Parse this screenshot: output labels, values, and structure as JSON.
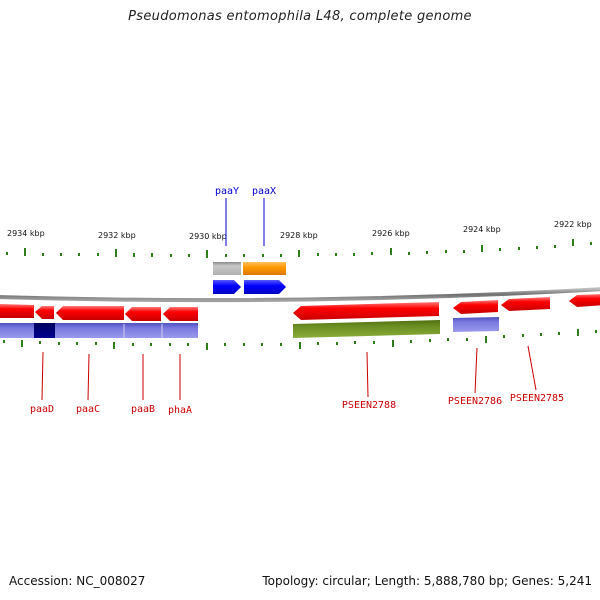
{
  "title": "Pseudomonas entomophila L48, complete genome",
  "footer": {
    "accession": "Accession: NC_008027",
    "summary": "Topology: circular; Length: 5,888,780 bp; Genes: 5,241"
  },
  "colors": {
    "forward_label": "#0000cc",
    "reverse_label": "#cc0000",
    "tick": "#2e7d1a",
    "backbone": "#8a8a8a"
  },
  "scale_labels": [
    "2934 kbp",
    "2932 kbp",
    "2930 kbp",
    "2928 kbp",
    "2926 kbp",
    "2924 kbp",
    "2922 kbp"
  ],
  "genes_forward": [
    {
      "label": "paaY",
      "color": "#0000ee"
    },
    {
      "label": "paaX",
      "color": "#0000ee"
    }
  ],
  "genes_reverse": [
    {
      "label": "paaD",
      "color": "#cc0000"
    },
    {
      "label": "paaC",
      "color": "#cc0000"
    },
    {
      "label": "paaB",
      "color": "#cc0000"
    },
    {
      "label": "phaA",
      "color": "#cc0000"
    },
    {
      "label": "PSEEN2788",
      "color": "#cc0000"
    },
    {
      "label": "PSEEN2786",
      "color": "#cc0000"
    },
    {
      "label": "PSEEN2785",
      "color": "#cc0000"
    }
  ]
}
